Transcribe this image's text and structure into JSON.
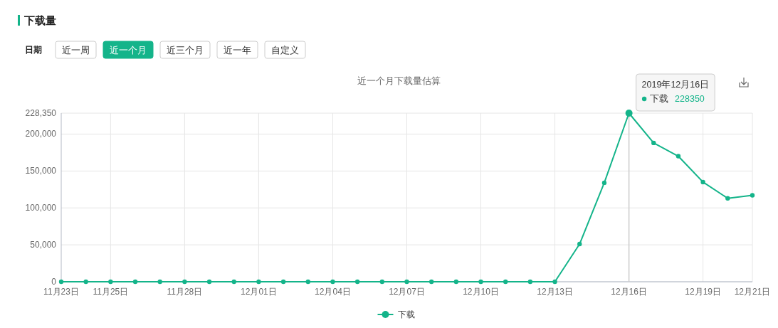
{
  "chart_data": {
    "type": "line",
    "title": "近一个月下载量估算",
    "x": [
      "2019-11-23",
      "2019-11-24",
      "2019-11-25",
      "2019-11-26",
      "2019-11-27",
      "2019-11-28",
      "2019-11-29",
      "2019-11-30",
      "2019-12-01",
      "2019-12-02",
      "2019-12-03",
      "2019-12-04",
      "2019-12-05",
      "2019-12-06",
      "2019-12-07",
      "2019-12-08",
      "2019-12-09",
      "2019-12-10",
      "2019-12-11",
      "2019-12-12",
      "2019-12-13",
      "2019-12-14",
      "2019-12-15",
      "2019-12-16",
      "2019-12-17",
      "2019-12-18",
      "2019-12-19",
      "2019-12-20",
      "2019-12-21"
    ],
    "series": [
      {
        "name": "下载",
        "color": "#14b48a",
        "values": [
          0,
          0,
          0,
          0,
          0,
          0,
          0,
          0,
          0,
          0,
          0,
          0,
          0,
          0,
          0,
          0,
          0,
          0,
          0,
          0,
          0,
          51000,
          134000,
          228350,
          188000,
          170000,
          135000,
          113000,
          117000
        ]
      }
    ],
    "xlim": [
      "2019-11-23",
      "2019-12-21"
    ],
    "xticks": [
      {
        "value": "2019-11-23",
        "label": "11月23日"
      },
      {
        "value": "2019-11-25",
        "label": "11月25日"
      },
      {
        "value": "2019-11-28",
        "label": "11月28日"
      },
      {
        "value": "2019-12-01",
        "label": "12月01日"
      },
      {
        "value": "2019-12-04",
        "label": "12月04日"
      },
      {
        "value": "2019-12-07",
        "label": "12月07日"
      },
      {
        "value": "2019-12-10",
        "label": "12月10日"
      },
      {
        "value": "2019-12-13",
        "label": "12月13日"
      },
      {
        "value": "2019-12-16",
        "label": "12月16日"
      },
      {
        "value": "2019-12-19",
        "label": "12月19日"
      },
      {
        "value": "2019-12-21",
        "label": "12月21日"
      }
    ],
    "ylim": [
      0,
      228350
    ],
    "yticks": [
      0,
      {
        "value": 50000,
        "label": "50,000"
      },
      {
        "value": 100000,
        "label": "100,000"
      },
      {
        "value": 150000,
        "label": "150,000"
      },
      {
        "value": 200000,
        "label": "200,000"
      },
      {
        "value": 228350,
        "label": "228,350"
      }
    ],
    "grid": true,
    "legend": "bottom",
    "marker": "circle",
    "line_style": "solid",
    "ref_lines": [
      {
        "axis": "x",
        "value": "2019-12-16",
        "color": "#cccccc"
      }
    ],
    "annotations": [
      "下载量",
      "日期",
      "近一周",
      "近一个月",
      "近三个月",
      "近一年",
      "自定义",
      "2019年12月16日",
      {
        "text": "下载 228350",
        "x": "2019-12-16",
        "y": 228350
      }
    ]
  }
}
